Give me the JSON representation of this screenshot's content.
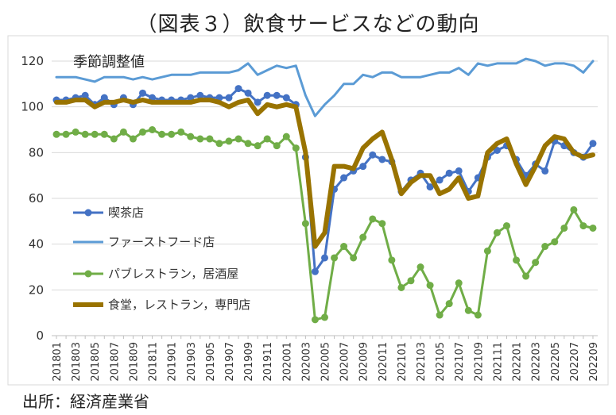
{
  "chart_data": {
    "type": "line",
    "title": "（図表３）飲食サービスなどの動向",
    "annotation": "季節調整値",
    "source": "出所：経済産業省",
    "ylim": [
      0,
      120
    ],
    "yticks": [
      0,
      20,
      40,
      60,
      80,
      100,
      120
    ],
    "grid": "horizontal",
    "legend_position": "left",
    "x": [
      "201801",
      "201802",
      "201803",
      "201804",
      "201805",
      "201806",
      "201807",
      "201808",
      "201809",
      "201810",
      "201811",
      "201812",
      "201901",
      "201902",
      "201903",
      "201904",
      "201905",
      "201906",
      "201907",
      "201908",
      "201909",
      "201910",
      "201911",
      "201912",
      "202001",
      "202002",
      "202003",
      "202004",
      "202005",
      "202006",
      "202007",
      "202008",
      "202009",
      "202010",
      "202011",
      "202012",
      "202101",
      "202102",
      "202103",
      "202104",
      "202105",
      "202106",
      "202107",
      "202108",
      "202109",
      "202110",
      "202111",
      "202112",
      "202201",
      "202202",
      "202203",
      "202204",
      "202205",
      "202206",
      "202207",
      "202208",
      "202209"
    ],
    "x_tick_labels": [
      "201801",
      "201803",
      "201805",
      "201807",
      "201809",
      "201811",
      "201901",
      "201903",
      "201905",
      "201907",
      "201909",
      "201911",
      "202001",
      "202003",
      "202005",
      "202007",
      "202009",
      "202011",
      "202101",
      "202103",
      "202105",
      "202107",
      "202109",
      "202111",
      "202201",
      "202203",
      "202205",
      "202207",
      "202209"
    ],
    "series": [
      {
        "name": "喫茶店",
        "color": "#4472C4",
        "width": 3,
        "marker": true,
        "values": [
          103,
          103,
          104,
          105,
          101,
          104,
          101,
          104,
          101,
          106,
          104,
          103,
          103,
          103,
          104,
          105,
          104,
          104,
          104,
          108,
          106,
          102,
          105,
          105,
          104,
          101,
          78,
          28,
          34,
          64,
          69,
          72,
          74,
          79,
          77,
          76,
          63,
          68,
          71,
          65,
          68,
          71,
          72,
          63,
          69,
          78,
          81,
          83,
          77,
          70,
          75,
          72,
          85,
          83,
          80,
          78,
          84
        ]
      },
      {
        "name": "ファーストフード店",
        "color": "#5B9BD5",
        "width": 3,
        "marker": false,
        "values": [
          113,
          113,
          113,
          112,
          111,
          113,
          113,
          113,
          112,
          113,
          112,
          113,
          114,
          114,
          114,
          115,
          115,
          115,
          115,
          116,
          119,
          114,
          116,
          118,
          117,
          118,
          105,
          96,
          101,
          105,
          110,
          110,
          114,
          113,
          115,
          115,
          113,
          113,
          113,
          114,
          115,
          115,
          117,
          114,
          119,
          118,
          119,
          119,
          119,
          121,
          120,
          118,
          119,
          119,
          118,
          115,
          120
        ]
      },
      {
        "name": "パブレストラン，居酒屋",
        "color": "#70AD47",
        "width": 3,
        "marker": true,
        "values": [
          88,
          88,
          89,
          88,
          88,
          88,
          86,
          89,
          86,
          89,
          90,
          88,
          88,
          89,
          87,
          86,
          86,
          84,
          85,
          86,
          84,
          83,
          86,
          83,
          87,
          82,
          49,
          7,
          8,
          34,
          39,
          34,
          43,
          51,
          49,
          33,
          21,
          24,
          30,
          22,
          9,
          14,
          23,
          11,
          9,
          37,
          45,
          48,
          33,
          26,
          32,
          39,
          41,
          47,
          55,
          48,
          47
        ]
      },
      {
        "name": "食堂，レストラン，専門店",
        "color": "#997300",
        "width": 6,
        "marker": false,
        "values": [
          102,
          102,
          103,
          103,
          100,
          102,
          102,
          103,
          102,
          103,
          102,
          102,
          102,
          102,
          102,
          103,
          103,
          102,
          100,
          102,
          103,
          97,
          101,
          100,
          101,
          100,
          80,
          39,
          45,
          74,
          74,
          73,
          82,
          86,
          89,
          77,
          62,
          67,
          70,
          70,
          62,
          64,
          69,
          60,
          61,
          80,
          84,
          86,
          75,
          66,
          74,
          83,
          87,
          86,
          80,
          78,
          79
        ]
      }
    ]
  }
}
